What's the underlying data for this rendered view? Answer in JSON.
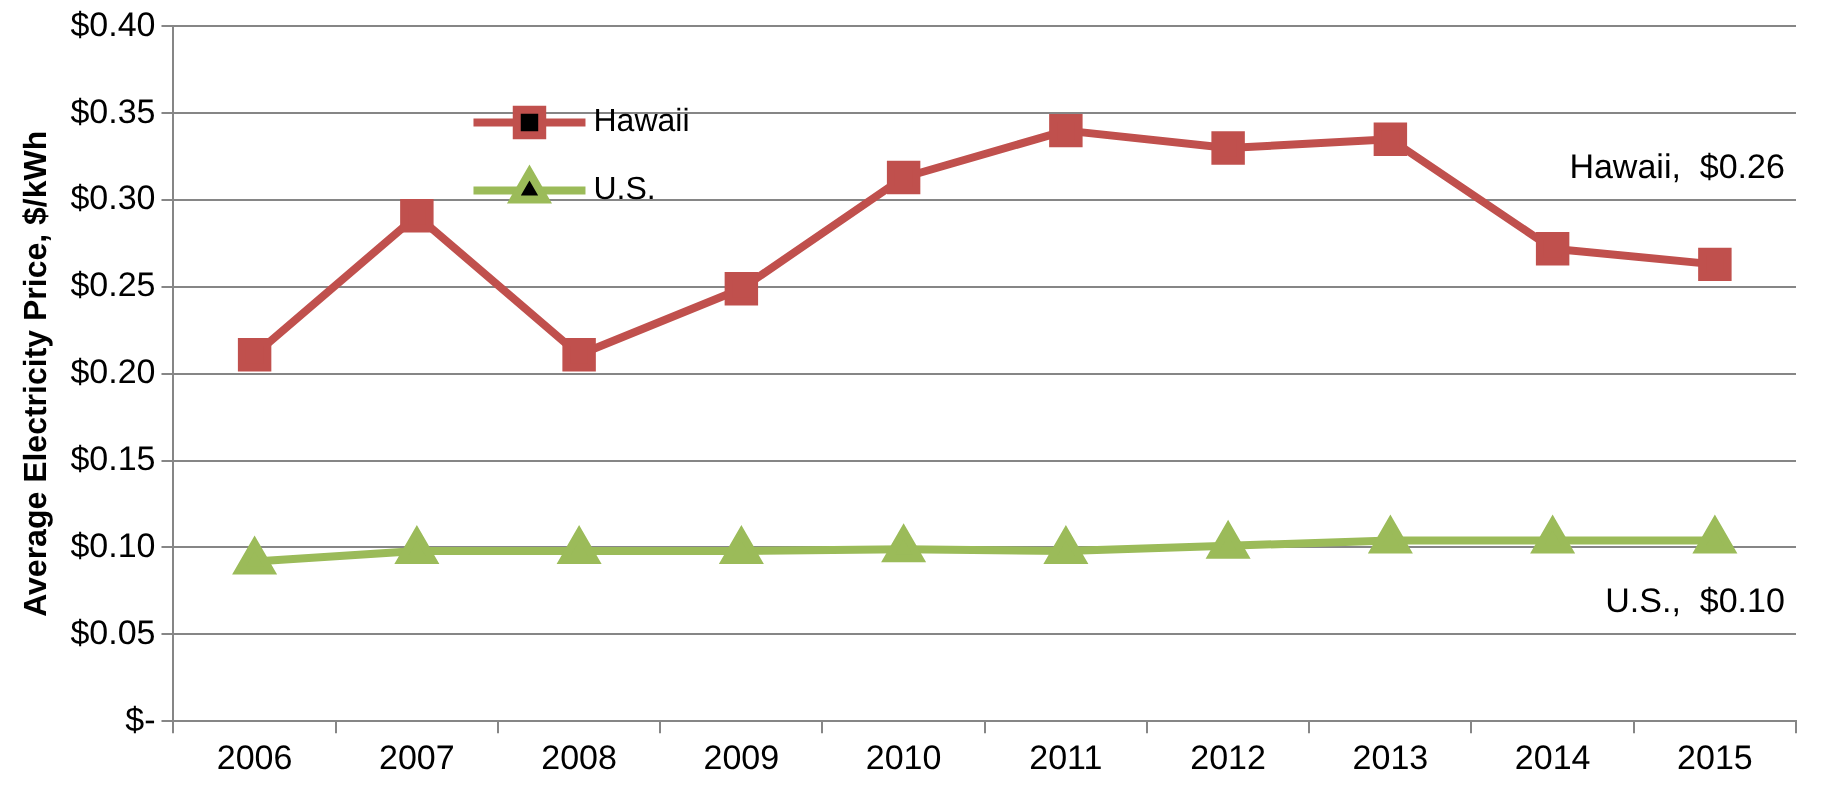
{
  "chart_data": {
    "type": "line",
    "ylabel": "Average Electricity Price, $/kWh",
    "categories": [
      "2006",
      "2007",
      "2008",
      "2009",
      "2010",
      "2011",
      "2012",
      "2013",
      "2014",
      "2015"
    ],
    "series": [
      {
        "name": "Hawaii",
        "color": "#c0504d",
        "marker": "square",
        "values": [
          0.211,
          0.291,
          0.211,
          0.249,
          0.313,
          0.34,
          0.33,
          0.335,
          0.272,
          0.263
        ]
      },
      {
        "name": "U.S.",
        "color": "#9bbb59",
        "marker": "triangle",
        "values": [
          0.092,
          0.098,
          0.098,
          0.098,
          0.099,
          0.098,
          0.101,
          0.104,
          0.104,
          0.104
        ]
      }
    ],
    "ylim": [
      0,
      0.4
    ],
    "yticks": [
      {
        "value": 0,
        "label": "$-"
      },
      {
        "value": 0.05,
        "label": "$0.05"
      },
      {
        "value": 0.1,
        "label": "$0.10"
      },
      {
        "value": 0.15,
        "label": "$0.15"
      },
      {
        "value": 0.2,
        "label": "$0.20"
      },
      {
        "value": 0.25,
        "label": "$0.25"
      },
      {
        "value": 0.3,
        "label": "$0.30"
      },
      {
        "value": 0.35,
        "label": "$0.35"
      },
      {
        "value": 0.4,
        "label": "$0.40"
      }
    ],
    "grid": "y",
    "legend": "top left",
    "line_style": "solid",
    "annotations": [
      {
        "text": "Hawaii,  $0.26",
        "x": "2015",
        "y": 0.263
      },
      {
        "text": "U.S.,  $0.10",
        "x": "2015",
        "y": 0.104
      }
    ]
  }
}
